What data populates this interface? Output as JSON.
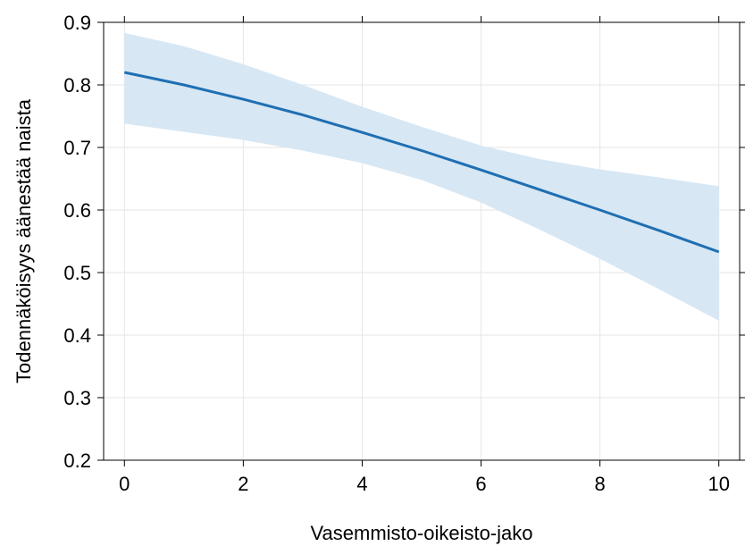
{
  "chart_data": {
    "type": "line",
    "title": "",
    "xlabel": "Vasemmisto-oikeisto-jako",
    "ylabel": "Todennäköisyys äänestää naista",
    "xlim": [
      -0.35,
      10.35
    ],
    "ylim": [
      0.2,
      0.9
    ],
    "xticks": [
      0,
      2,
      4,
      6,
      8,
      10
    ],
    "xtick_labels": [
      "0",
      "2",
      "4",
      "6",
      "8",
      "10"
    ],
    "yticks": [
      0.2,
      0.3,
      0.4,
      0.5,
      0.6,
      0.7,
      0.8,
      0.9
    ],
    "ytick_labels": [
      "0.2",
      "0.3",
      "0.4",
      "0.5",
      "0.6",
      "0.7",
      "0.8",
      "0.9"
    ],
    "grid": true,
    "series": [
      {
        "x": [
          0,
          1,
          2,
          3,
          4,
          5,
          6,
          7,
          8,
          9,
          10
        ],
        "y": [
          0.82,
          0.8,
          0.777,
          0.752,
          0.724,
          0.695,
          0.664,
          0.632,
          0.6,
          0.567,
          0.533
        ],
        "ci_lower": [
          0.738,
          0.725,
          0.712,
          0.695,
          0.675,
          0.648,
          0.612,
          0.568,
          0.522,
          0.473,
          0.423
        ],
        "ci_upper": [
          0.883,
          0.862,
          0.833,
          0.8,
          0.765,
          0.733,
          0.703,
          0.681,
          0.665,
          0.652,
          0.638
        ],
        "color": "#1f6fb2",
        "band_color": "#d7e7f4"
      }
    ]
  }
}
